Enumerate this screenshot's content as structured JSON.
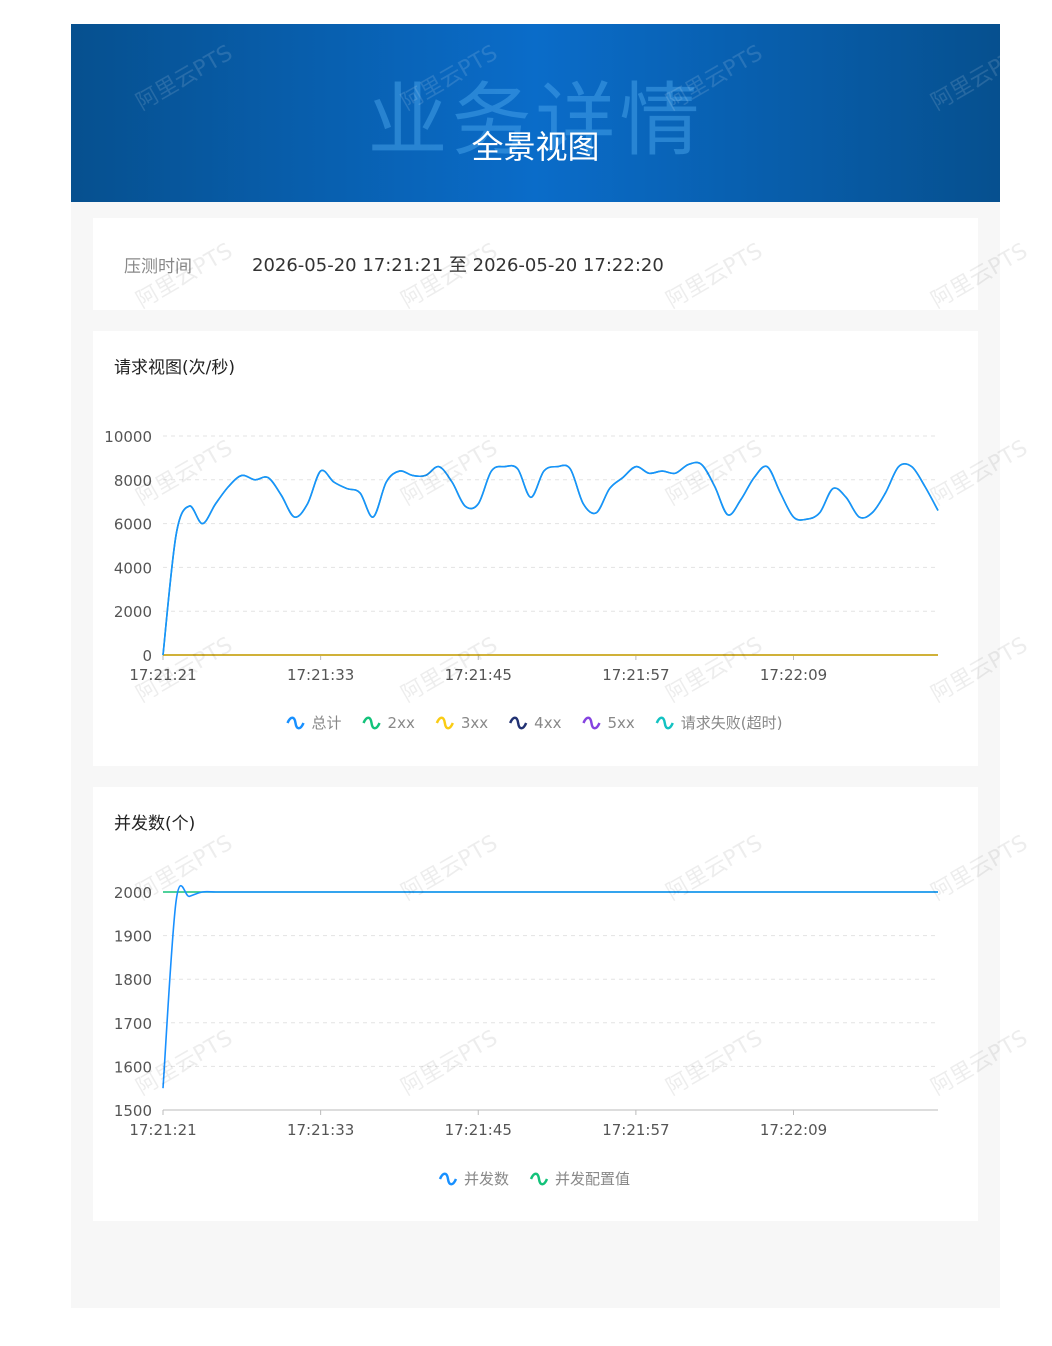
{
  "header": {
    "background_title": "业务详情",
    "title": "全景视图"
  },
  "watermark": "阿里云PTS",
  "test_time": {
    "label": "压测时间",
    "value": "2026-05-20 17:21:21 至 2026-05-20 17:22:20"
  },
  "chart_data": [
    {
      "type": "line",
      "title": "请求视图(次/秒)",
      "categories": [
        "17:21:21",
        null,
        null,
        null,
        null,
        null,
        null,
        null,
        null,
        null,
        null,
        null,
        "17:21:33",
        null,
        null,
        null,
        null,
        null,
        null,
        null,
        null,
        null,
        null,
        null,
        "17:21:45",
        null,
        null,
        null,
        null,
        null,
        null,
        null,
        null,
        null,
        null,
        null,
        "17:21:57",
        null,
        null,
        null,
        null,
        null,
        null,
        null,
        null,
        null,
        null,
        null,
        "17:22:09",
        null,
        null,
        null,
        null,
        null,
        null,
        null,
        null,
        null,
        null,
        null
      ],
      "ylim": [
        0,
        10000
      ],
      "yticks": [
        0,
        2000,
        4000,
        6000,
        8000,
        10000
      ],
      "grid": true,
      "series": [
        {
          "name": "总计",
          "color": "#1890ff",
          "values": [
            0,
            5500,
            6800,
            6000,
            6900,
            7700,
            8200,
            8000,
            8100,
            7300,
            6300,
            6900,
            8400,
            7900,
            7600,
            7400,
            6300,
            7900,
            8400,
            8200,
            8200,
            8600,
            7900,
            6800,
            6900,
            8400,
            8600,
            8500,
            7200,
            8400,
            8600,
            8500,
            6900,
            6500,
            7600,
            8100,
            8600,
            8300,
            8400,
            8300,
            8700,
            8700,
            7700,
            6400,
            7100,
            8100,
            8600,
            7400,
            6300,
            6200,
            6500,
            7600,
            7200,
            6300,
            6500,
            7400,
            8600,
            8600,
            7700,
            6600
          ]
        },
        {
          "name": "2xx",
          "color": "#13c27a",
          "values": [
            0,
            5500,
            6800,
            6000,
            6900,
            7700,
            8200,
            8000,
            8100,
            7300,
            6300,
            6900,
            8400,
            7900,
            7600,
            7400,
            6300,
            7900,
            8400,
            8200,
            8200,
            8600,
            7900,
            6800,
            6900,
            8400,
            8600,
            8500,
            7200,
            8400,
            8600,
            8500,
            6900,
            6500,
            7600,
            8100,
            8600,
            8300,
            8400,
            8300,
            8700,
            8700,
            7700,
            6400,
            7100,
            8100,
            8600,
            7400,
            6300,
            6200,
            6500,
            7600,
            7200,
            6300,
            6500,
            7400,
            8600,
            8600,
            7700,
            6600
          ]
        },
        {
          "name": "3xx",
          "color": "#facc14",
          "values": [
            0,
            0,
            0,
            0,
            0,
            0,
            0,
            0,
            0,
            0,
            0,
            0,
            0,
            0,
            0,
            0,
            0,
            0,
            0,
            0,
            0,
            0,
            0,
            0,
            0,
            0,
            0,
            0,
            0,
            0,
            0,
            0,
            0,
            0,
            0,
            0,
            0,
            0,
            0,
            0,
            0,
            0,
            0,
            0,
            0,
            0,
            0,
            0,
            0,
            0,
            0,
            0,
            0,
            0,
            0,
            0,
            0,
            0,
            0,
            0
          ]
        },
        {
          "name": "4xx",
          "color": "#223273",
          "values": [
            0,
            0,
            0,
            0,
            0,
            0,
            0,
            0,
            0,
            0,
            0,
            0,
            0,
            0,
            0,
            0,
            0,
            0,
            0,
            0,
            0,
            0,
            0,
            0,
            0,
            0,
            0,
            0,
            0,
            0,
            0,
            0,
            0,
            0,
            0,
            0,
            0,
            0,
            0,
            0,
            0,
            0,
            0,
            0,
            0,
            0,
            0,
            0,
            0,
            0,
            0,
            0,
            0,
            0,
            0,
            0,
            0,
            0,
            0,
            0
          ]
        },
        {
          "name": "5xx",
          "color": "#8543e0",
          "values": [
            0,
            0,
            0,
            0,
            0,
            0,
            0,
            0,
            0,
            0,
            0,
            0,
            0,
            0,
            0,
            0,
            0,
            0,
            0,
            0,
            0,
            0,
            0,
            0,
            0,
            0,
            0,
            0,
            0,
            0,
            0,
            0,
            0,
            0,
            0,
            0,
            0,
            0,
            0,
            0,
            0,
            0,
            0,
            0,
            0,
            0,
            0,
            0,
            0,
            0,
            0,
            0,
            0,
            0,
            0,
            0,
            0,
            0,
            0,
            0
          ]
        },
        {
          "name": "请求失败(超时)",
          "color": "#13c2c2",
          "values": [
            0,
            0,
            0,
            0,
            0,
            0,
            0,
            0,
            0,
            0,
            0,
            0,
            0,
            0,
            0,
            0,
            0,
            0,
            0,
            0,
            0,
            0,
            0,
            0,
            0,
            0,
            0,
            0,
            0,
            0,
            0,
            0,
            0,
            0,
            0,
            0,
            0,
            0,
            0,
            0,
            0,
            0,
            0,
            0,
            0,
            0,
            0,
            0,
            0,
            0,
            0,
            0,
            0,
            0,
            0,
            0,
            0,
            0,
            0,
            0
          ]
        }
      ]
    },
    {
      "type": "line",
      "title": "并发数(个)",
      "categories": [
        "17:21:21",
        null,
        null,
        null,
        null,
        null,
        null,
        null,
        null,
        null,
        null,
        null,
        "17:21:33",
        null,
        null,
        null,
        null,
        null,
        null,
        null,
        null,
        null,
        null,
        null,
        "17:21:45",
        null,
        null,
        null,
        null,
        null,
        null,
        null,
        null,
        null,
        null,
        null,
        "17:21:57",
        null,
        null,
        null,
        null,
        null,
        null,
        null,
        null,
        null,
        null,
        null,
        "17:22:09",
        null,
        null,
        null,
        null,
        null,
        null,
        null,
        null,
        null,
        null,
        null
      ],
      "ylim": [
        1500,
        2000
      ],
      "yticks": [
        1500,
        1600,
        1700,
        1800,
        1900,
        2000
      ],
      "grid": true,
      "series": [
        {
          "name": "并发数",
          "color": "#1890ff",
          "values": [
            1550,
            1980,
            1990,
            2000,
            2000,
            2000,
            2000,
            2000,
            2000,
            2000,
            2000,
            2000,
            2000,
            2000,
            2000,
            2000,
            2000,
            2000,
            2000,
            2000,
            2000,
            2000,
            2000,
            2000,
            2000,
            2000,
            2000,
            2000,
            2000,
            2000,
            2000,
            2000,
            2000,
            2000,
            2000,
            2000,
            2000,
            2000,
            2000,
            2000,
            2000,
            2000,
            2000,
            2000,
            2000,
            2000,
            2000,
            2000,
            2000,
            2000,
            2000,
            2000,
            2000,
            2000,
            2000,
            2000,
            2000,
            2000,
            2000,
            2000
          ]
        },
        {
          "name": "并发配置值",
          "color": "#13c27a",
          "values": [
            2000,
            2000,
            2000,
            2000,
            2000,
            2000,
            2000,
            2000,
            2000,
            2000,
            2000,
            2000,
            2000,
            2000,
            2000,
            2000,
            2000,
            2000,
            2000,
            2000,
            2000,
            2000,
            2000,
            2000,
            2000,
            2000,
            2000,
            2000,
            2000,
            2000,
            2000,
            2000,
            2000,
            2000,
            2000,
            2000,
            2000,
            2000,
            2000,
            2000,
            2000,
            2000,
            2000,
            2000,
            2000,
            2000,
            2000,
            2000,
            2000,
            2000,
            2000,
            2000,
            2000,
            2000,
            2000,
            2000,
            2000,
            2000,
            2000,
            2000
          ]
        }
      ]
    }
  ]
}
